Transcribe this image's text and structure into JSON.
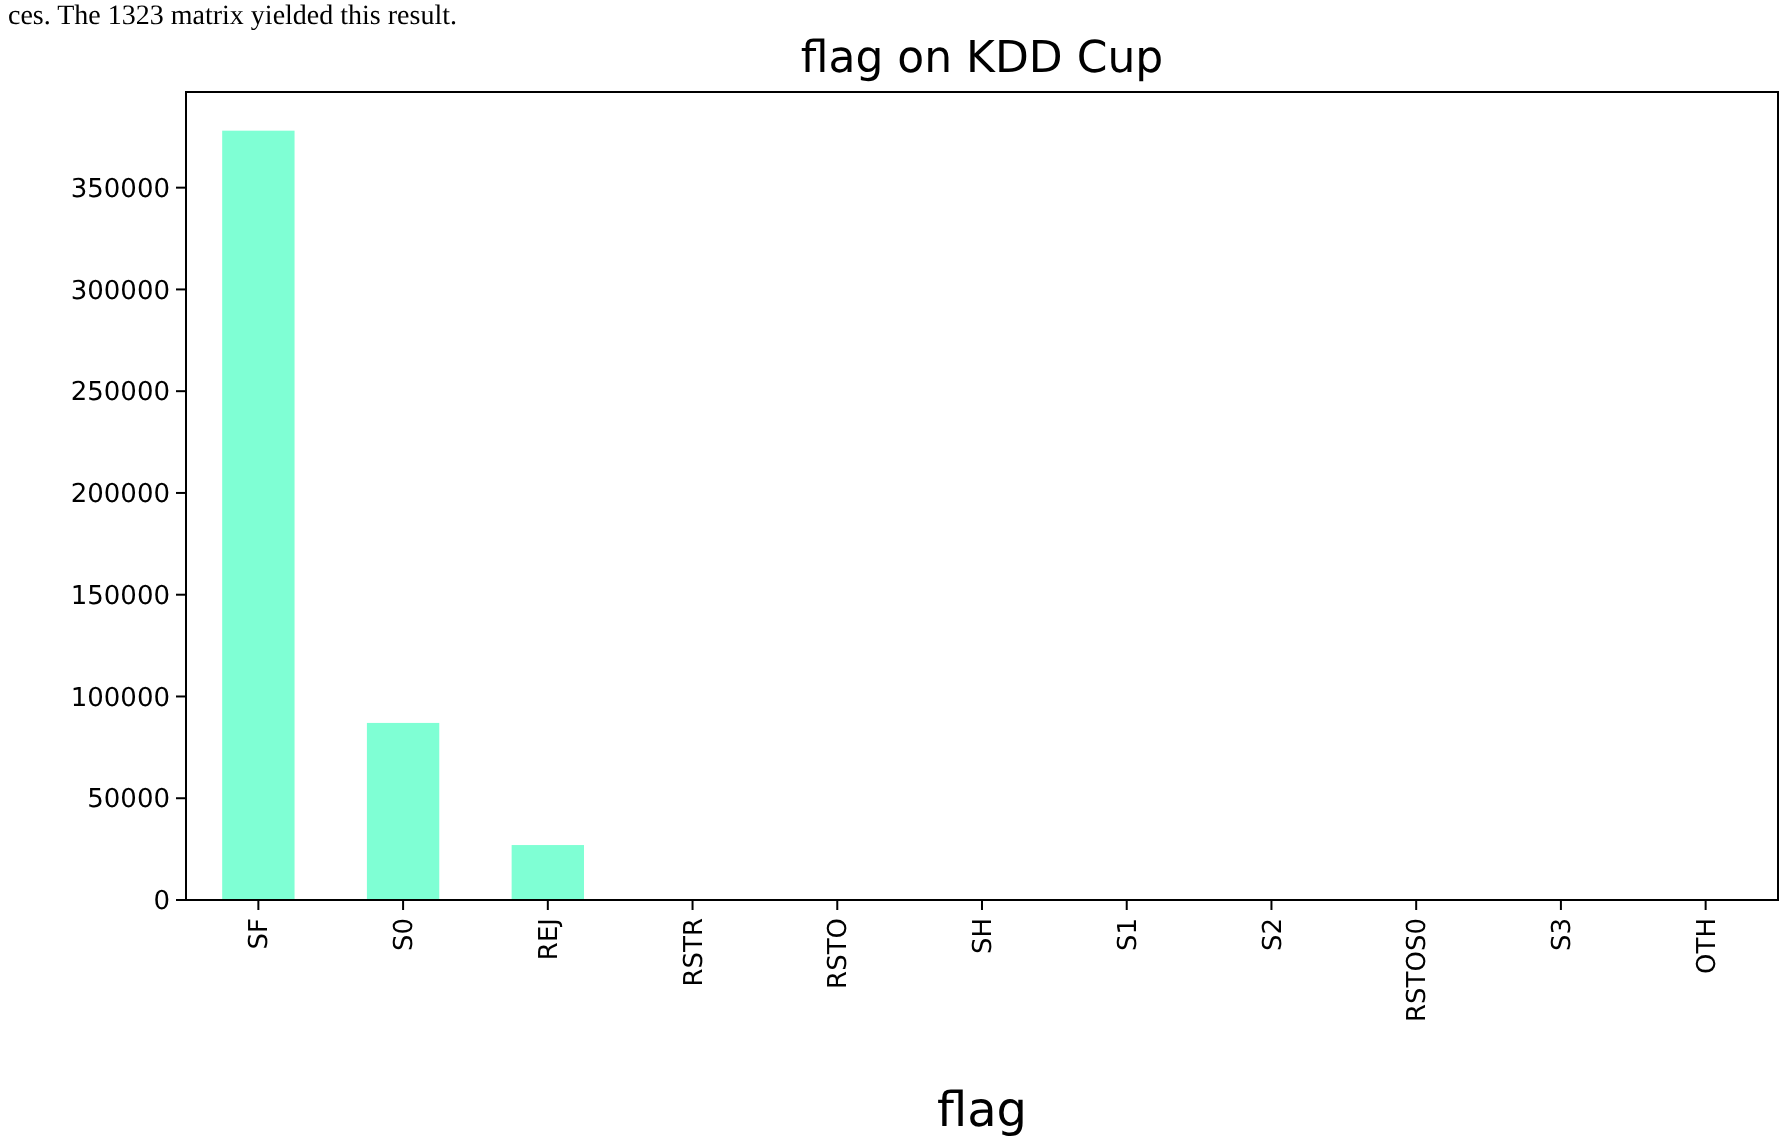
{
  "chart_data": {
    "type": "bar",
    "title": "flag on KDD Cup",
    "xlabel": "flag",
    "categories": [
      "SF",
      "S0",
      "REJ",
      "RSTR",
      "RSTO",
      "SH",
      "S1",
      "S2",
      "RSTOS0",
      "S3",
      "OTH"
    ],
    "values": [
      378000,
      87000,
      27000,
      0,
      0,
      0,
      0,
      0,
      0,
      0,
      0
    ],
    "color": "#7fffd4",
    "ylim": [
      0,
      397000
    ],
    "yticks": [
      0,
      50000,
      100000,
      150000,
      200000,
      250000,
      300000,
      350000
    ],
    "grid": false,
    "annotations": [
      "ces. The 1323 matrix yielded this result."
    ]
  }
}
